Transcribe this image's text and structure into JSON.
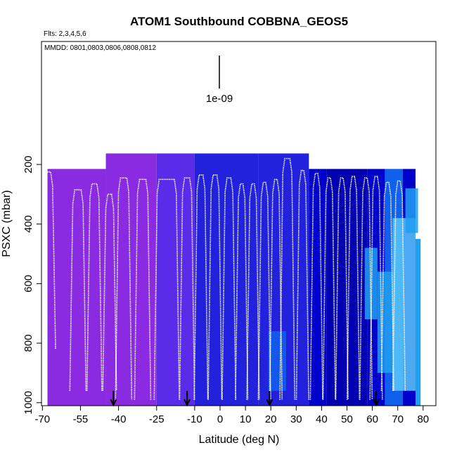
{
  "chart_data": {
    "type": "heatmap",
    "title": "ATOM1 Southbound COBBNA_GEOS5",
    "flights_note": "Flts: 2,3,4,5,6",
    "dates_note": "MMDD: 0801,0803,0806,0808,0812",
    "xlabel": "Latitude (deg N)",
    "ylabel": "PSXC (mbar)",
    "xlim": [
      -70,
      82
    ],
    "ylim": [
      1010,
      0
    ],
    "x_ticks": [
      -70,
      -55,
      -40,
      -25,
      -10,
      0,
      10,
      20,
      30,
      40,
      50,
      60,
      70,
      80
    ],
    "y_ticks": [
      200,
      400,
      600,
      800,
      1000
    ],
    "legend_scale_label": "1e-09",
    "colors": {
      "purple": "#8a2be2",
      "violet_blue": "#5a2be8",
      "blue": "#2222dd",
      "dark_blue": "#0000cc",
      "deep_blue": "#0000b0",
      "medium_blue": "#1060ee",
      "sky_blue": "#20a0f0",
      "light_sky": "#5ac8f8",
      "profile_line": "#ffffff"
    },
    "columns": [
      {
        "x0": -68,
        "x1": -45,
        "ptop": 215,
        "color": "purple"
      },
      {
        "x0": -45,
        "x1": -25,
        "ptop": 163,
        "color": "purple"
      },
      {
        "x0": -25,
        "x1": -10,
        "ptop": 163,
        "color": "violet_blue"
      },
      {
        "x0": -10,
        "x1": 15,
        "ptop": 163,
        "color": "blue"
      },
      {
        "x0": 15,
        "x1": 35,
        "ptop": 163,
        "color": "blue"
      },
      {
        "x0": 35,
        "x1": 42,
        "ptop": 215,
        "color": "dark_blue"
      },
      {
        "x0": 42,
        "x1": 58,
        "ptop": 215,
        "color": "deep_blue"
      },
      {
        "x0": 58,
        "x1": 65,
        "ptop": 215,
        "color": "dark_blue"
      },
      {
        "x0": 65,
        "x1": 72,
        "ptop": 215,
        "color": "medium_blue"
      },
      {
        "x0": 72,
        "x1": 77,
        "ptop": 215,
        "color": "dark_blue"
      },
      {
        "x0": 77,
        "x1": 79,
        "ptop": 450,
        "color": "sky_blue"
      }
    ],
    "light_patches": [
      {
        "x0": 19,
        "x1": 26,
        "p0": 760,
        "p1": 960,
        "color": "medium_blue"
      },
      {
        "x0": 57,
        "x1": 62,
        "p0": 480,
        "p1": 720,
        "color": "sky_blue"
      },
      {
        "x0": 62,
        "x1": 68,
        "p0": 560,
        "p1": 900,
        "color": "sky_blue"
      },
      {
        "x0": 68,
        "x1": 77,
        "p0": 380,
        "p1": 960,
        "color": "light_sky"
      },
      {
        "x0": 73,
        "x1": 78,
        "p0": 280,
        "p1": 430,
        "color": "sky_blue"
      }
    ],
    "profiles": [
      {
        "x": -68.5,
        "ptop": 225,
        "pbot": 820,
        "plateau": 3.5
      },
      {
        "x": -56,
        "ptop": 285,
        "pbot": 960,
        "plateau": 2.5
      },
      {
        "x": -49.5,
        "ptop": 265,
        "pbot": 960,
        "plateau": 2
      },
      {
        "x": -43.5,
        "ptop": 300,
        "pbot": 960,
        "plateau": 1.5
      },
      {
        "x": -38,
        "ptop": 245,
        "pbot": 990,
        "plateau": 2.5
      },
      {
        "x": -30.5,
        "ptop": 250,
        "pbot": 990,
        "plateau": 2.5
      },
      {
        "x": -21,
        "ptop": 250,
        "pbot": 990,
        "plateau": 6
      },
      {
        "x": -13,
        "ptop": 245,
        "pbot": 990,
        "plateau": 2
      },
      {
        "x": -7.5,
        "ptop": 235,
        "pbot": 990,
        "plateau": 1.5
      },
      {
        "x": -2,
        "ptop": 235,
        "pbot": 990,
        "plateau": 1.5
      },
      {
        "x": 3.5,
        "ptop": 245,
        "pbot": 990,
        "plateau": 1.5
      },
      {
        "x": 8.5,
        "ptop": 265,
        "pbot": 990,
        "plateau": 1
      },
      {
        "x": 13,
        "ptop": 265,
        "pbot": 990,
        "plateau": 1
      },
      {
        "x": 17.5,
        "ptop": 260,
        "pbot": 990,
        "plateau": 1
      },
      {
        "x": 22,
        "ptop": 250,
        "pbot": 990,
        "plateau": 1
      },
      {
        "x": 26.5,
        "ptop": 180,
        "pbot": 990,
        "plateau": 2
      },
      {
        "x": 32.5,
        "ptop": 220,
        "pbot": 990,
        "plateau": 1
      },
      {
        "x": 38,
        "ptop": 230,
        "pbot": 990,
        "plateau": 1
      },
      {
        "x": 43,
        "ptop": 245,
        "pbot": 990,
        "plateau": 1
      },
      {
        "x": 48,
        "ptop": 245,
        "pbot": 990,
        "plateau": 1
      },
      {
        "x": 52.5,
        "ptop": 240,
        "pbot": 990,
        "plateau": 1
      },
      {
        "x": 57.5,
        "ptop": 245,
        "pbot": 990,
        "plateau": 1
      },
      {
        "x": 61.5,
        "ptop": 240,
        "pbot": 990,
        "plateau": 1
      },
      {
        "x": 66,
        "ptop": 260,
        "pbot": 960,
        "plateau": 1
      },
      {
        "x": 70.5,
        "ptop": 255,
        "pbot": 960,
        "plateau": 1
      }
    ],
    "arrows_x": [
      -42,
      -13,
      19.5,
      61.5
    ]
  }
}
